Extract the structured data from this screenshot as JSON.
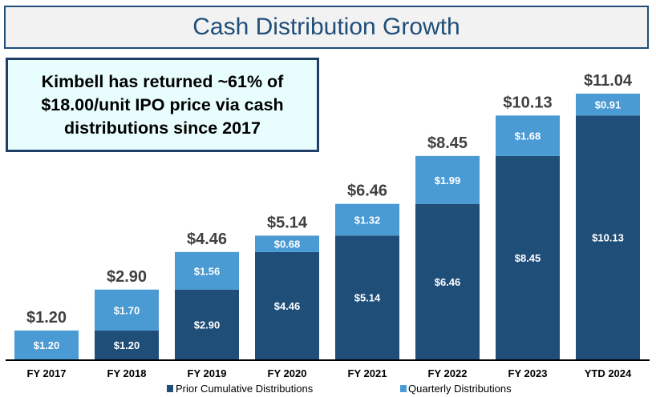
{
  "title": "Cash Distribution Growth",
  "callout": "Kimbell has returned ~61% of $18.00/unit IPO price via cash distributions since 2017",
  "colors": {
    "prior": "#1f4e79",
    "quarterly": "#4a9ad4",
    "total_label": "#404040"
  },
  "chart_data": {
    "type": "bar",
    "stacked": true,
    "title": "Cash Distribution Growth",
    "categories": [
      "FY 2017",
      "FY 2018",
      "FY 2019",
      "FY 2020",
      "FY 2021",
      "FY 2022",
      "FY 2023",
      "YTD 2024"
    ],
    "series": [
      {
        "name": "Prior Cumulative Distributions",
        "values": [
          0,
          1.2,
          2.9,
          4.46,
          5.14,
          6.46,
          8.45,
          10.13
        ],
        "labels": [
          "",
          "$1.20",
          "$2.90",
          "$4.46",
          "$5.14",
          "$6.46",
          "$8.45",
          "$10.13"
        ]
      },
      {
        "name": "Quarterly Distributions",
        "values": [
          1.2,
          1.7,
          1.56,
          0.68,
          1.32,
          1.99,
          1.68,
          0.91
        ],
        "labels": [
          "$1.20",
          "$1.70",
          "$1.56",
          "$0.68",
          "$1.32",
          "$1.99",
          "$1.68",
          "$0.91"
        ]
      }
    ],
    "totals": [
      "$1.20",
      "$2.90",
      "$4.46",
      "$5.14",
      "$6.46",
      "$8.45",
      "$10.13",
      "$11.04"
    ],
    "ylim": [
      0,
      11.04
    ],
    "grid": false,
    "legend": "bottom"
  }
}
